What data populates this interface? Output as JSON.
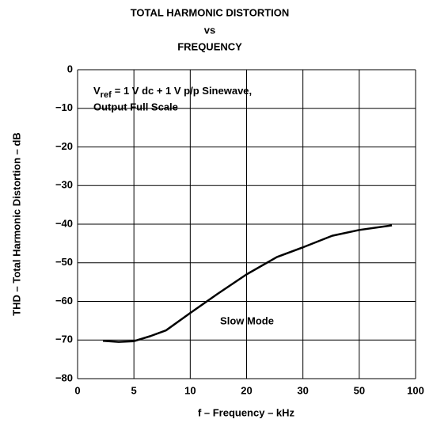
{
  "chart_data": {
    "type": "line",
    "title": [
      "TOTAL HARMONIC DISTORTION",
      "vs",
      "FREQUENCY"
    ],
    "xlabel": "f – Frequency – kHz",
    "ylabel": "THD – Total Harmonic Distortion – dB",
    "note": {
      "symbol": "V",
      "subscript": "ref",
      "line1": "= 1 V dc + 1 V p/p Sinewave,",
      "line2": "Output Full Scale"
    },
    "annotation": "Slow Mode",
    "series": [
      {
        "name": "Slow Mode",
        "color": "#000000",
        "x": [
          2.25,
          3.65,
          5,
          6.45,
          7.85,
          10,
          14.9,
          20,
          25.4,
          30,
          40.4,
          50,
          79
        ],
        "values": [
          -70.2,
          -70.5,
          -70.3,
          -69,
          -67.5,
          -63,
          -58,
          -53,
          -48.5,
          -46,
          -43,
          -41.5,
          -40.3
        ]
      }
    ],
    "xlim": [
      0,
      100
    ],
    "xticks": [
      0,
      5,
      10,
      20,
      30,
      50,
      100
    ],
    "ylim": [
      -80,
      0
    ],
    "yticks": [
      0,
      {
        "value": -10,
        "label": "−10"
      },
      {
        "value": -20,
        "label": "−20"
      },
      {
        "value": -30,
        "label": "−30"
      },
      {
        "value": -40,
        "label": "−40"
      },
      {
        "value": -50,
        "label": "−50"
      },
      {
        "value": -60,
        "label": "−60"
      },
      {
        "value": -70,
        "label": "−70"
      },
      {
        "value": -80,
        "label": "−80"
      }
    ],
    "grid": true
  }
}
